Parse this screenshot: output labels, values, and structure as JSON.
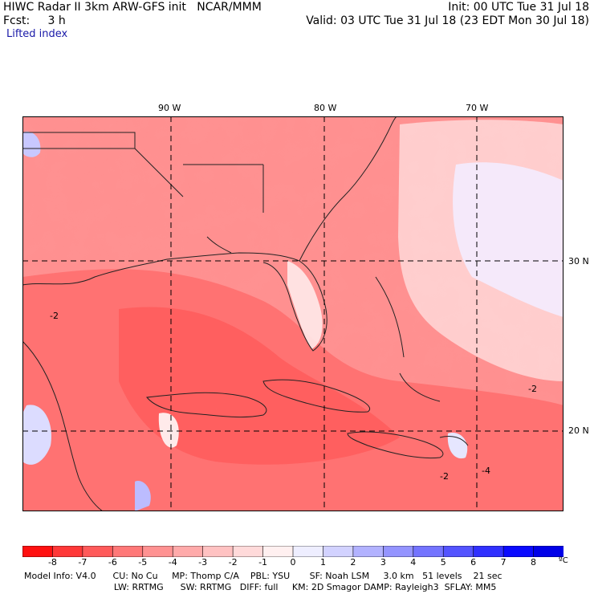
{
  "header": {
    "line1_left": "HIWC Radar II 3km ARW-GFS init   NCAR/MMM",
    "line1_right": "Init: 00 UTC Tue 31 Jul 18",
    "line2_left": "Fcst:     3 h",
    "line2_right": "Valid: 03 UTC Tue 31 Jul 18 (23 EDT Mon 30 Jul 18)",
    "field_name": "Lifted index"
  },
  "map": {
    "lon_labels": [
      "90 W",
      "80 W",
      "70 W"
    ],
    "lat_labels": [
      "30 N",
      "20 N"
    ],
    "contour_labels": [
      "-2",
      "-2",
      "-4",
      "-2"
    ]
  },
  "colorbar": {
    "ticks": [
      "-8",
      "-7",
      "-6",
      "-5",
      "-4",
      "-3",
      "-2",
      "-1",
      "0",
      "1",
      "2",
      "3",
      "4",
      "5",
      "6",
      "7",
      "8"
    ],
    "unit": "ºC",
    "colors": [
      "#ff1010",
      "#ff3838",
      "#ff5a5a",
      "#ff7878",
      "#ff9292",
      "#ffaaaa",
      "#ffc2c2",
      "#ffdada",
      "#fff0f0",
      "#eeeeff",
      "#d2d2ff",
      "#b2b2ff",
      "#9494ff",
      "#7474ff",
      "#5454ff",
      "#3030ff",
      "#0a0aff",
      "#0000e8"
    ]
  },
  "footer": {
    "line1": "Model Info: V4.0      CU: No Cu     MP: Thomp C/A    PBL: YSU       SF: Noah LSM     3.0 km   51 levels    21 sec",
    "line2": "                                LW: RRTMG      SW: RRTMG   DIFF: full     KM: 2D Smagor DAMP: Rayleigh3  SFLAY: MM5"
  }
}
